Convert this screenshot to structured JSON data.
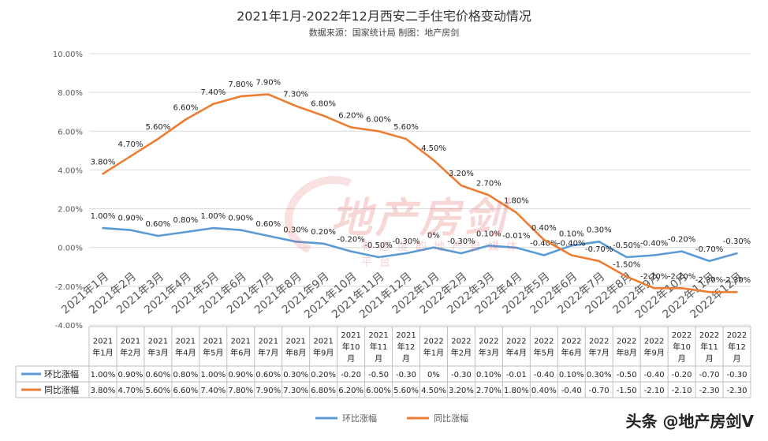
{
  "chart_data": {
    "type": "line",
    "title": "2021年1月-2022年12月西安二手住宅价格变动情况",
    "subtitle": "数据来源：国家统计局  制图：地产房剑",
    "categories": [
      "2021年1月",
      "2021年2月",
      "2021年3月",
      "2021年4月",
      "2021年5月",
      "2021年6月",
      "2021年7月",
      "2021年8月",
      "2021年9月",
      "2021年10月",
      "2021年11月",
      "2021年12月",
      "2022年1月",
      "2022年2月",
      "2022年3月",
      "2022年4月",
      "2022年5月",
      "2022年6月",
      "2022年7月",
      "2022年8月",
      "2022年9月",
      "2022年10月",
      "2022年11月",
      "2022年12月"
    ],
    "table_headers": [
      [
        "2021",
        "年1月"
      ],
      [
        "2021",
        "年2月"
      ],
      [
        "2021",
        "年3月"
      ],
      [
        "2021",
        "年4月"
      ],
      [
        "2021",
        "年5月"
      ],
      [
        "2021",
        "年6月"
      ],
      [
        "2021",
        "年7月"
      ],
      [
        "2021",
        "年8月"
      ],
      [
        "2021",
        "年9月"
      ],
      [
        "2021",
        "年10",
        "月"
      ],
      [
        "2021",
        "年11",
        "月"
      ],
      [
        "2021",
        "年12",
        "月"
      ],
      [
        "2022",
        "年1月"
      ],
      [
        "2022",
        "年2月"
      ],
      [
        "2022",
        "年3月"
      ],
      [
        "2022",
        "年4月"
      ],
      [
        "2022",
        "年5月"
      ],
      [
        "2022",
        "年6月"
      ],
      [
        "2022",
        "年7月"
      ],
      [
        "2022",
        "年8月"
      ],
      [
        "2022",
        "年9月"
      ],
      [
        "2022",
        "年10",
        "月"
      ],
      [
        "2022",
        "年11",
        "月"
      ],
      [
        "2022",
        "年12",
        "月"
      ]
    ],
    "yticks": [
      "10.00%",
      "8.00%",
      "6.00%",
      "4.00%",
      "2.00%",
      "0.00%",
      "-2.00%",
      "-4.00%"
    ],
    "ylim": [
      -4,
      10
    ],
    "series": [
      {
        "name": "环比涨幅",
        "color": "#5b9bd5",
        "values": [
          1.0,
          0.9,
          0.6,
          0.8,
          1.0,
          0.9,
          0.6,
          0.3,
          0.2,
          -0.2,
          -0.5,
          -0.3,
          0,
          -0.3,
          0.1,
          -0.01,
          -0.4,
          0.1,
          0.3,
          -0.5,
          -0.4,
          -0.2,
          -0.7,
          -0.3
        ],
        "point_labels": [
          "1.00%",
          "0.90%",
          "0.60%",
          "0.80%",
          "1.00%",
          "0.90%",
          "0.60%",
          "0.30%",
          "0.20%",
          "-0.20%",
          "-0.50%",
          "-0.30%",
          "0%",
          "-0.30%",
          "0.10%",
          "-0.01%",
          "-0.40%",
          "0.10%",
          "0.30%",
          "-0.50%",
          "-0.40%",
          "-0.20%",
          "-0.70%",
          "-0.30%"
        ],
        "table_values": [
          "1.00%",
          "0.90%",
          "0.60%",
          "0.80%",
          "1.00%",
          "0.90%",
          "0.60%",
          "0.30%",
          "0.20%",
          "-0.20",
          "-0.50",
          "-0.30",
          "0%",
          "-0.30",
          "0.10%",
          "-0.01",
          "-0.40",
          "0.10%",
          "0.30%",
          "-0.50",
          "-0.40",
          "-0.20",
          "-0.70",
          "-0.30"
        ]
      },
      {
        "name": "同比涨幅",
        "color": "#ed7d31",
        "values": [
          3.8,
          4.7,
          5.6,
          6.6,
          7.4,
          7.8,
          7.9,
          7.3,
          6.8,
          6.2,
          6.0,
          5.6,
          4.5,
          3.2,
          2.7,
          1.8,
          0.4,
          -0.4,
          -0.7,
          -1.5,
          -2.1,
          -2.1,
          -2.3,
          -2.3
        ],
        "point_labels": [
          "3.80%",
          "4.70%",
          "5.60%",
          "6.60%",
          "7.40%",
          "7.80%",
          "7.90%",
          "7.30%",
          "6.80%",
          "6.20%",
          "6.00%",
          "5.60%",
          "4.50%",
          "3.20%",
          "2.70%",
          "1.80%",
          "0.40%",
          "-0.40%",
          "-0.70%",
          "-1.50%",
          "-2.10%",
          "-2.10%",
          "-2.30%",
          "-2.30%"
        ],
        "table_values": [
          "3.80%",
          "4.70%",
          "5.60%",
          "6.60%",
          "7.40%",
          "7.80%",
          "7.90%",
          "7.30%",
          "6.80%",
          "6.20%",
          "6.00%",
          "5.60%",
          "4.50%",
          "3.20%",
          "2.70%",
          "1.80%",
          "0.40%",
          "-0.40",
          "-0.70",
          "-1.50",
          "-2.10",
          "-2.10",
          "-2.30",
          "-2.30"
        ]
      }
    ],
    "legend_position": "bottom",
    "grid": true
  },
  "watermark": {
    "main": "地产房剑",
    "sub": "有态度的地产自媒体平台"
  },
  "brand_label": "头条 @地产房剑V"
}
